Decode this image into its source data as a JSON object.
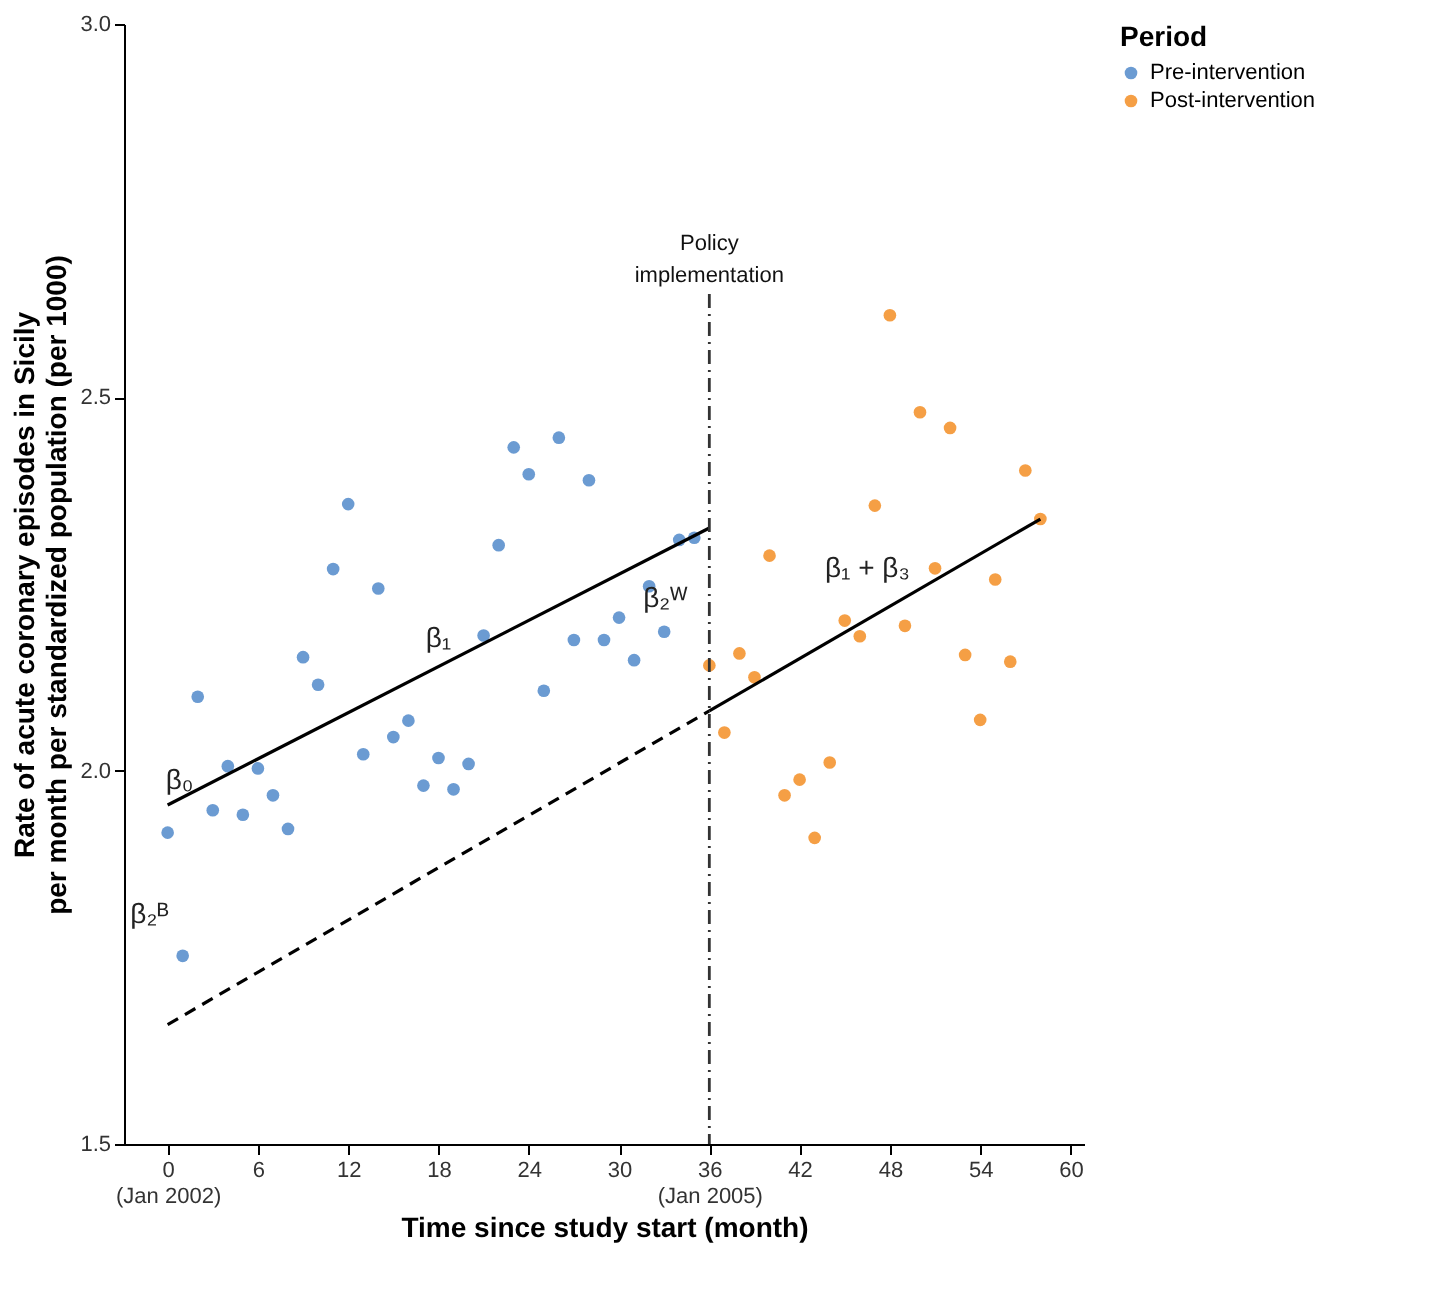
{
  "chart_data": {
    "type": "scatter",
    "xlabel": "Time since study start (month)",
    "ylabel": "Rate of acute coronary episodes in Sicily\nper month per standardized population (per 1000)",
    "legend_title": "Period",
    "xlim": [
      -2.9,
      60.9
    ],
    "ylim": [
      1.5,
      3.0
    ],
    "xticks": [
      {
        "value": 0,
        "label": "0\n(Jan 2002)"
      },
      6,
      12,
      18,
      24,
      30,
      {
        "value": 36,
        "label": "36\n(Jan 2005)"
      },
      42,
      48,
      54,
      60
    ],
    "yticks": [
      {
        "value": 1.5,
        "label": "1.5"
      },
      {
        "value": 2,
        "label": "2.0"
      },
      {
        "value": 2.5,
        "label": "2.5"
      },
      {
        "value": 3,
        "label": "3.0"
      }
    ],
    "grid": false,
    "legend": "right",
    "marker": "circle",
    "series": [
      {
        "name": "Pre-intervention",
        "color": "#6b9bd2",
        "x": [
          0,
          1,
          2,
          3,
          4,
          5,
          6,
          7,
          8,
          9,
          10,
          11,
          12,
          13,
          14,
          15,
          16,
          17,
          18,
          19,
          20,
          21,
          22,
          23,
          24,
          25,
          26,
          27,
          28,
          29,
          30,
          31,
          32,
          33,
          34,
          35
        ],
        "values": [
          1.917,
          1.752,
          2.099,
          1.947,
          2.006,
          1.941,
          2.003,
          1.967,
          1.922,
          2.152,
          2.115,
          2.27,
          2.357,
          2.022,
          2.244,
          2.045,
          2.067,
          1.98,
          2.017,
          1.975,
          2.009,
          2.181,
          2.302,
          2.433,
          2.397,
          2.107,
          2.446,
          2.175,
          2.389,
          2.175,
          2.205,
          2.148,
          2.247,
          2.186,
          2.309,
          2.312
        ]
      },
      {
        "name": "Post-intervention",
        "color": "#f59f45",
        "x": [
          36,
          37,
          38,
          39,
          40,
          41,
          42,
          43,
          44,
          45,
          46,
          47,
          48,
          49,
          50,
          51,
          52,
          53,
          54,
          55,
          56,
          57,
          58
        ],
        "values": [
          2.141,
          2.051,
          2.157,
          2.125,
          2.288,
          1.967,
          1.988,
          1.91,
          2.011,
          2.201,
          2.18,
          2.355,
          2.61,
          2.194,
          2.48,
          2.271,
          2.459,
          2.155,
          2.068,
          2.256,
          2.146,
          2.402,
          2.337
        ]
      },
      {
        "type": "line",
        "color": "#000000",
        "marker": "none",
        "x": [
          0,
          36
        ],
        "values": [
          1.954,
          2.325
        ]
      },
      {
        "type": "line",
        "color": "#000000",
        "marker": "none",
        "x": [
          36,
          58
        ],
        "values": [
          2.08,
          2.337
        ]
      },
      {
        "type": "line",
        "color": "#000000",
        "marker": "none",
        "line_style": "dashed",
        "x": [
          0,
          36
        ],
        "values": [
          1.66,
          2.08
        ]
      }
    ],
    "ref_lines": [
      {
        "axis": "x",
        "value": 36,
        "label": "Policy\nimplementation",
        "color": "#333333",
        "line_style": "dashed"
      }
    ],
    "annotations": [
      "β₀",
      "β₁",
      "β₂ᵂ",
      "β₂ᴮ",
      "β₁ + β₃"
    ]
  }
}
